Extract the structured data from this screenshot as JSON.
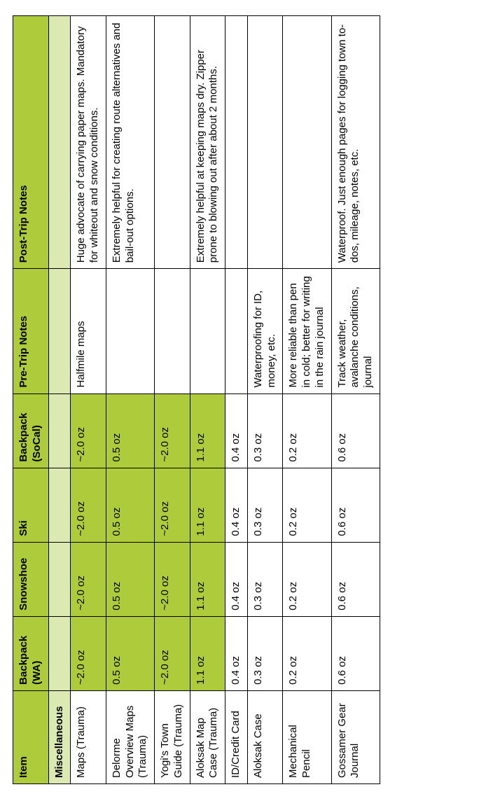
{
  "colors": {
    "header_bg": "#aecb3b",
    "section_bg": "#dde9b2",
    "highlight_bg": "#aecb3b",
    "border": "#000000",
    "text": "#000000",
    "page_bg": "#ffffff"
  },
  "columns": [
    {
      "key": "item",
      "label": "Item"
    },
    {
      "key": "wa",
      "label": "Backpack (WA)"
    },
    {
      "key": "snow",
      "label": "Snowshoe"
    },
    {
      "key": "ski",
      "label": "Ski"
    },
    {
      "key": "socal",
      "label": "Backpack (SoCal)"
    },
    {
      "key": "pre",
      "label": "Pre-Trip Notes"
    },
    {
      "key": "post",
      "label": "Post-Trip Notes"
    }
  ],
  "section": {
    "title": "Miscellaneous"
  },
  "rows": [
    {
      "item": "Maps (Trauma)",
      "wa": "~2.0 oz",
      "snow": "~2.0 oz",
      "ski": "~2.0 oz",
      "socal": "~2.0 oz",
      "pre": "Halfmile maps",
      "post": "Huge advocate of carrying paper maps. Mandatory for whiteout and snow conditions.",
      "highlight": true
    },
    {
      "item": "Delorme Overview Maps (Trauma)",
      "wa": "0.5 oz",
      "snow": "0.5 oz",
      "ski": "0.5 oz",
      "socal": "0.5 oz",
      "pre": "",
      "post": "Extremely helpful for creating route alternatives and bail-out options.",
      "highlight": true
    },
    {
      "item": "Yogi's Town Guide (Trauma)",
      "wa": "~2.0 oz",
      "snow": "~2.0 oz",
      "ski": "~2.0 oz",
      "socal": "~2.0 oz",
      "pre": "",
      "post": "",
      "highlight": true
    },
    {
      "item": "Aloksak Map Case (Trauma)",
      "wa": "1.1 oz",
      "snow": "1.1 oz",
      "ski": "1.1 oz",
      "socal": "1.1 oz",
      "pre": "",
      "post": "Extremely helpful at keeping maps dry. Zipper prone to blowing out after about 2 months.",
      "highlight": true
    },
    {
      "item": "ID/Credit Card",
      "wa": "0.4 oz",
      "snow": "0.4 oz",
      "ski": "0.4 oz",
      "socal": "0.4 oz",
      "pre": "",
      "post": "",
      "highlight": false
    },
    {
      "item": "Aloksak Case",
      "wa": "0.3 oz",
      "snow": "0.3 oz",
      "ski": "0.3 oz",
      "socal": "0.3 oz",
      "pre": "Waterproofing for ID, money, etc.",
      "post": "",
      "highlight": false
    },
    {
      "item": "Mechanical Pencil",
      "wa": "0.2 oz",
      "snow": "0.2 oz",
      "ski": "0.2 oz",
      "socal": "0.2 oz",
      "pre": "More reliable than pen in cold; better for writing in the rain journal",
      "post": "",
      "highlight": false
    },
    {
      "item": "Gossamer Gear Journal",
      "wa": "0.6 oz",
      "snow": "0.6 oz",
      "ski": "0.6 oz",
      "socal": "0.6 oz",
      "pre": "Track weather, avalanche conditions, journal",
      "post": "Waterproof. Just enough pages for logging town to-dos, mileage, notes, etc.",
      "highlight": false
    }
  ]
}
